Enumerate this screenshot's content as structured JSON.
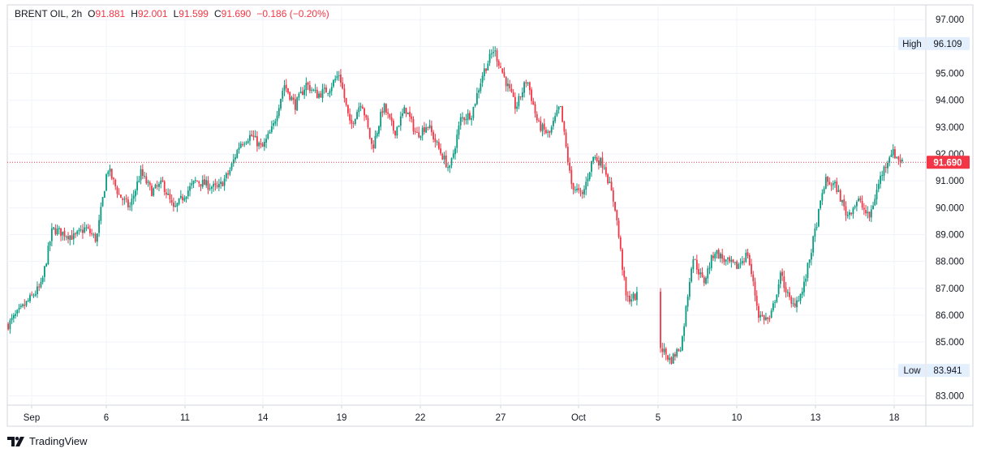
{
  "header": {
    "symbol": "BRENT OIL",
    "interval": "2h",
    "open_label": "O",
    "open": "91.881",
    "high_label": "H",
    "high": "92.001",
    "low_label": "L",
    "low": "91.599",
    "close_label": "C",
    "close": "91.690",
    "change": "−0.186 (−0.20%)"
  },
  "footer": {
    "brand": "TradingView"
  },
  "colors": {
    "up": "#089981",
    "down": "#f23645",
    "grid": "#f0f3fa",
    "axis_text": "#131722"
  },
  "chart_data": {
    "type": "candlestick",
    "y_range": [
      82.65,
      97.55
    ],
    "y_ticks": [
      "97.000",
      "96.000",
      "95.000",
      "94.000",
      "93.000",
      "92.000",
      "91.000",
      "90.000",
      "89.000",
      "88.000",
      "87.000",
      "86.000",
      "85.000",
      "84.000",
      "83.000"
    ],
    "x_ticks": [
      "Sep",
      "6",
      "11",
      "14",
      "19",
      "22",
      "27",
      "Oct",
      "5",
      "10",
      "13",
      "18"
    ],
    "last_price": {
      "value": 91.69,
      "label": "91.690"
    },
    "high_marker": {
      "label": "High",
      "value_label": "96.109",
      "value": 96.109
    },
    "low_marker": {
      "label": "Low",
      "value_label": "83.941",
      "value": 83.941
    },
    "price_path": [
      [
        1,
        85.65
      ],
      [
        4,
        87.1
      ],
      [
        5,
        89.2
      ],
      [
        7,
        88.9
      ],
      [
        8,
        89.25
      ],
      [
        9,
        88.8
      ],
      [
        10,
        91.5
      ],
      [
        11,
        90.5
      ],
      [
        12,
        90.0
      ],
      [
        13,
        91.3
      ],
      [
        14,
        90.6
      ],
      [
        15,
        90.9
      ],
      [
        16,
        89.9
      ],
      [
        17,
        90.5
      ],
      [
        18,
        91.0
      ],
      [
        20,
        90.7
      ],
      [
        21,
        91.3
      ],
      [
        22,
        92.4
      ],
      [
        23,
        92.7
      ],
      [
        24,
        92.2
      ],
      [
        25,
        93.0
      ],
      [
        26,
        94.6
      ],
      [
        27,
        93.8
      ],
      [
        28,
        94.6
      ],
      [
        29,
        94.2
      ],
      [
        30,
        94.4
      ],
      [
        31,
        95.0
      ],
      [
        32,
        93.0
      ],
      [
        33,
        94.0
      ],
      [
        34,
        92.2
      ],
      [
        35,
        93.8
      ],
      [
        36,
        92.8
      ],
      [
        37,
        93.7
      ],
      [
        38,
        92.7
      ],
      [
        39,
        93.1
      ],
      [
        40,
        92.2
      ],
      [
        41,
        91.4
      ],
      [
        42,
        93.3
      ],
      [
        43,
        93.5
      ],
      [
        44,
        95.0
      ],
      [
        45,
        95.9
      ],
      [
        46,
        94.8
      ],
      [
        47,
        93.7
      ],
      [
        48,
        94.8
      ],
      [
        49,
        93.1
      ],
      [
        50,
        92.7
      ],
      [
        51,
        93.8
      ],
      [
        52,
        90.9
      ],
      [
        53,
        90.4
      ],
      [
        54,
        91.9
      ],
      [
        55,
        91.6
      ],
      [
        56,
        90.0
      ],
      [
        57,
        86.6
      ],
      [
        58,
        86.7
      ],
      [
        59,
        84.5
      ],
      [
        60,
        84.9
      ],
      [
        61,
        84.3
      ],
      [
        62,
        84.9
      ],
      [
        63,
        88.2
      ],
      [
        64,
        87.2
      ],
      [
        65,
        88.4
      ],
      [
        66,
        88.0
      ],
      [
        67,
        87.8
      ],
      [
        68,
        88.3
      ],
      [
        69,
        86.0
      ],
      [
        70,
        85.8
      ],
      [
        71,
        87.5
      ],
      [
        72,
        86.3
      ],
      [
        73,
        86.9
      ],
      [
        74,
        88.9
      ],
      [
        75,
        91.0
      ],
      [
        76,
        90.8
      ],
      [
        77,
        89.7
      ],
      [
        78,
        90.3
      ],
      [
        79,
        89.6
      ],
      [
        80,
        91.1
      ],
      [
        81,
        92.1
      ],
      [
        82,
        91.7
      ]
    ]
  }
}
